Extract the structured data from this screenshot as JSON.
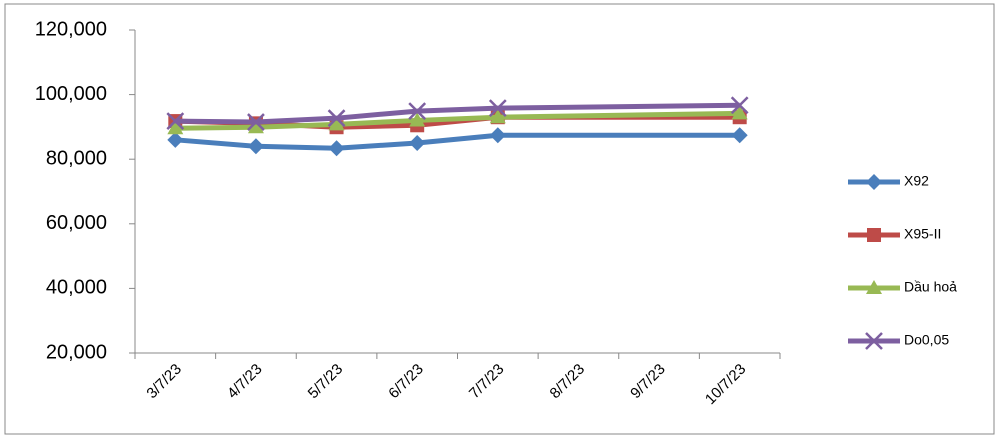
{
  "chart_data": {
    "type": "line",
    "x": [
      "3/7/23",
      "4/7/23",
      "5/7/23",
      "6/7/23",
      "7/7/23",
      "10/7/23"
    ],
    "xticks": [
      "3/7/23",
      "4/7/23",
      "5/7/23",
      "6/7/23",
      "7/7/23",
      "8/7/23",
      "9/7/23",
      "10/7/23"
    ],
    "ylim": [
      20000,
      120000
    ],
    "yticks": [
      {
        "value": 20000,
        "label": "20,000"
      },
      {
        "value": 40000,
        "label": "40,000"
      },
      {
        "value": 60000,
        "label": "60,000"
      },
      {
        "value": 80000,
        "label": "80,000"
      },
      {
        "value": 100000,
        "label": "100,000"
      },
      {
        "value": 120000,
        "label": "120,000"
      }
    ],
    "grid": false,
    "legend": "right",
    "series": [
      {
        "name": "X92",
        "color": "#4a7ebb",
        "marker": "diamond",
        "values": [
          86000,
          84000,
          83400,
          85000,
          87400,
          87400
        ]
      },
      {
        "name": "X95-II",
        "color": "#be4b48",
        "marker": "square",
        "values": [
          91800,
          91100,
          89900,
          90500,
          93000,
          93000
        ]
      },
      {
        "name": "Dầu hoả",
        "color": "#98b954",
        "marker": "triangle",
        "values": [
          89600,
          89900,
          90800,
          92000,
          93000,
          94200
        ]
      },
      {
        "name": "Do0,05",
        "color": "#7d5fa0",
        "marker": "x",
        "values": [
          91800,
          91500,
          92700,
          94900,
          95800,
          96700
        ]
      }
    ]
  }
}
